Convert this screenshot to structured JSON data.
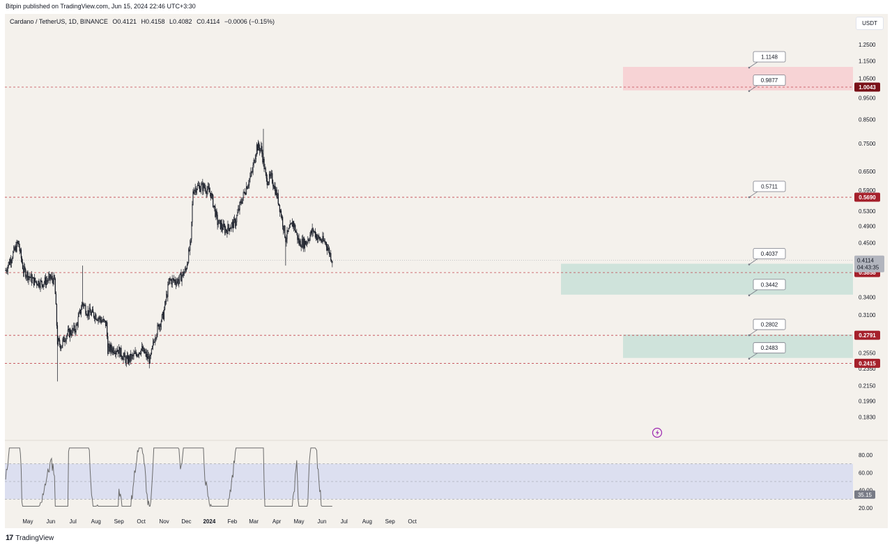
{
  "header": {
    "published": "Bitpin published on TradingView.com, Jun 15, 2024 22:46 UTC+3:30",
    "symbol": "Cardano / TetherUS, 1D, BINANCE",
    "open": "O0.4121",
    "high": "H0.4158",
    "low": "L0.4082",
    "close": "C0.4114",
    "change": "−0.0006 (−0.15%)",
    "currency": "USDT"
  },
  "footer": {
    "logo_text": "TradingView"
  },
  "colors": {
    "background": "#f4f1ec",
    "candle": "#131722",
    "dashed_level": "#c2444d",
    "red_zone": "#f7d3d5",
    "green_zone": "#cfe3db",
    "rsi_band": "#dcdff0",
    "rsi_line": "#6b6b6b",
    "badge_red": "#a5202b",
    "badge_dark": "#7a1018"
  },
  "chart_data": {
    "type": "candlestick",
    "title": "Cardano / TetherUS, 1D, BINANCE",
    "y_scale": "log",
    "ylim": [
      0.175,
      1.32
    ],
    "price_ticks": [
      1.25,
      1.15,
      1.05,
      0.95,
      0.85,
      0.75,
      0.65,
      0.59,
      0.53,
      0.49,
      0.45,
      0.34,
      0.31,
      0.255,
      0.235,
      0.215,
      0.199,
      0.183
    ],
    "price_tick_labels": [
      "1.2500",
      "1.1500",
      "1.0500",
      "0.9500",
      "0.8500",
      "0.7500",
      "0.6500",
      "0.5900",
      "0.5300",
      "0.4900",
      "0.4500",
      "0.3400",
      "0.3100",
      "0.2550",
      "0.2350",
      "0.2150",
      "0.1990",
      "0.1830"
    ],
    "x_labels": [
      "May",
      "Jun",
      "Jul",
      "Aug",
      "Sep",
      "Oct",
      "Nov",
      "Dec",
      "2024",
      "Feb",
      "Mar",
      "Apr",
      "May",
      "Jun",
      "Jul",
      "Aug",
      "Sep",
      "Oct"
    ],
    "close_path": [
      [
        "2023-04-01",
        0.39
      ],
      [
        "2023-04-18",
        0.45
      ],
      [
        "2023-04-25",
        0.39
      ],
      [
        "2023-05-08",
        0.37
      ],
      [
        "2023-05-20",
        0.365
      ],
      [
        "2023-06-01",
        0.375
      ],
      [
        "2023-06-06",
        0.37
      ],
      [
        "2023-06-10",
        0.27
      ],
      [
        "2023-06-15",
        0.265
      ],
      [
        "2023-06-22",
        0.28
      ],
      [
        "2023-06-30",
        0.285
      ],
      [
        "2023-07-05",
        0.29
      ],
      [
        "2023-07-14",
        0.33
      ],
      [
        "2023-07-20",
        0.315
      ],
      [
        "2023-07-31",
        0.31
      ],
      [
        "2023-08-15",
        0.295
      ],
      [
        "2023-08-17",
        0.26
      ],
      [
        "2023-08-30",
        0.26
      ],
      [
        "2023-09-11",
        0.245
      ],
      [
        "2023-09-20",
        0.25
      ],
      [
        "2023-10-01",
        0.26
      ],
      [
        "2023-10-13",
        0.245
      ],
      [
        "2023-10-20",
        0.28
      ],
      [
        "2023-10-31",
        0.31
      ],
      [
        "2023-11-08",
        0.37
      ],
      [
        "2023-11-20",
        0.37
      ],
      [
        "2023-11-30",
        0.39
      ],
      [
        "2023-12-07",
        0.45
      ],
      [
        "2023-12-10",
        0.59
      ],
      [
        "2023-12-15",
        0.6
      ],
      [
        "2023-12-25",
        0.6
      ],
      [
        "2024-01-03",
        0.58
      ],
      [
        "2024-01-12",
        0.5
      ],
      [
        "2024-01-23",
        0.48
      ],
      [
        "2024-02-05",
        0.5
      ],
      [
        "2024-02-12",
        0.55
      ],
      [
        "2024-02-20",
        0.6
      ],
      [
        "2024-02-28",
        0.65
      ],
      [
        "2024-03-05",
        0.74
      ],
      [
        "2024-03-11",
        0.73
      ],
      [
        "2024-03-18",
        0.62
      ],
      [
        "2024-03-25",
        0.63
      ],
      [
        "2024-04-03",
        0.56
      ],
      [
        "2024-04-13",
        0.46
      ],
      [
        "2024-04-23",
        0.5
      ],
      [
        "2024-05-01",
        0.45
      ],
      [
        "2024-05-10",
        0.45
      ],
      [
        "2024-05-20",
        0.48
      ],
      [
        "2024-05-27",
        0.46
      ],
      [
        "2024-06-06",
        0.45
      ],
      [
        "2024-06-15",
        0.4114
      ]
    ],
    "price_levels": [
      1.0043,
      0.569,
      0.3858,
      0.2791,
      0.2415
    ],
    "level_labels": [
      "1.0043",
      "0.5690",
      "0.3858",
      "0.2791",
      "0.2415"
    ],
    "current_price": "0.4114",
    "countdown": "04:43:35",
    "callouts": [
      "1.1148",
      "0.9877",
      "0.5711",
      "0.4037",
      "0.3442",
      "0.2802",
      "0.2483"
    ],
    "zones": [
      {
        "kind": "resistance",
        "from": 0.9877,
        "to": 1.1148
      },
      {
        "kind": "support",
        "from": 0.3442,
        "to": 0.4037
      },
      {
        "kind": "support",
        "from": 0.2483,
        "to": 0.2802
      }
    ],
    "rsi": {
      "ticks": [
        80,
        60,
        40,
        20
      ],
      "tick_labels": [
        "80.00",
        "60.00",
        "40.00",
        "20.00"
      ],
      "band": [
        30,
        70
      ],
      "value": "35.15"
    }
  }
}
